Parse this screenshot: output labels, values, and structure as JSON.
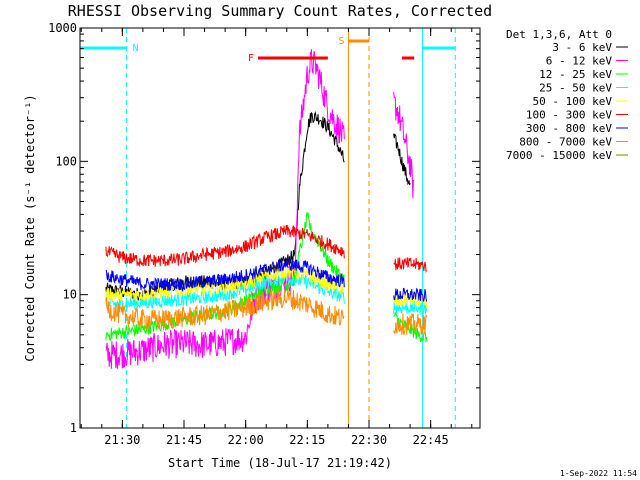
{
  "chart_data": {
    "type": "line",
    "title": "RHESSI Observing Summary Count Rates, Corrected",
    "xlabel": "Start Time (18-Jul-17 21:19:42)",
    "ylabel": "Corrected Count Rate (s⁻¹ detector⁻¹)",
    "yscale": "log",
    "ylim": [
      1,
      1000
    ],
    "xlim": [
      "21:19:42",
      "22:57:00"
    ],
    "x_ticks": [
      "21:30",
      "21:45",
      "22:00",
      "22:15",
      "22:30",
      "22:45"
    ],
    "y_ticks": [
      "1",
      "10",
      "100",
      "1000"
    ],
    "legend_title": "Det 1,3,6, Att 0",
    "legend_position": "right",
    "series": [
      {
        "name": "3 - 6 keV",
        "color": "#000000",
        "x": [
          "21:26",
          "21:30",
          "21:35",
          "21:40",
          "21:45",
          "21:50",
          "21:55",
          "22:00",
          "22:05",
          "22:10",
          "22:12",
          "22:13",
          "22:15",
          "22:16",
          "22:18",
          "22:20",
          "22:22",
          "22:23",
          "22:24"
        ],
        "y": [
          11,
          10.5,
          10,
          11.5,
          12.5,
          12.5,
          12,
          12.5,
          14.5,
          18,
          20,
          60,
          180,
          220,
          210,
          180,
          140,
          120,
          100
        ],
        "x2": [
          "22:36",
          "22:37",
          "22:38",
          "22:39",
          "22:40"
        ],
        "y2": [
          150,
          130,
          100,
          80,
          65
        ]
      },
      {
        "name": "6 - 12 keV",
        "color": "#ff00ff",
        "x": [
          "21:26",
          "21:30",
          "21:35",
          "21:40",
          "21:45",
          "21:50",
          "21:55",
          "22:00",
          "22:02",
          "22:05",
          "22:10",
          "22:12",
          "22:13",
          "22:15",
          "22:16",
          "22:17",
          "22:18",
          "22:20",
          "22:22",
          "22:23",
          "22:24"
        ],
        "y": [
          3.5,
          3.6,
          3.8,
          4.2,
          4.3,
          4.2,
          4.4,
          4.8,
          9,
          11,
          13,
          14,
          150,
          450,
          560,
          520,
          420,
          250,
          190,
          170,
          140
        ],
        "x2": [
          "22:36",
          "22:37",
          "22:38",
          "22:39",
          "22:40",
          "22:41"
        ],
        "y2": [
          270,
          240,
          180,
          130,
          95,
          55
        ]
      },
      {
        "name": "12 - 25 keV",
        "color": "#00ff00",
        "x": [
          "21:26",
          "21:30",
          "21:35",
          "21:40",
          "21:45",
          "21:50",
          "21:55",
          "22:00",
          "22:05",
          "22:10",
          "22:12",
          "22:13",
          "22:15",
          "22:16",
          "22:18",
          "22:20",
          "22:22",
          "22:23",
          "22:24"
        ],
        "y": [
          5,
          5.2,
          5.5,
          6,
          6.5,
          7,
          7.5,
          9,
          11,
          12,
          13,
          20,
          38,
          30,
          24,
          18,
          15,
          14,
          13
        ],
        "x2": [
          "22:36",
          "22:38",
          "22:40",
          "22:42",
          "22:44"
        ],
        "y2": [
          7,
          6,
          5.5,
          5,
          4.8
        ]
      },
      {
        "name": "25 - 50 keV",
        "color": "#00ffff",
        "x": [
          "21:26",
          "21:30",
          "21:35",
          "21:40",
          "21:45",
          "21:50",
          "21:55",
          "22:00",
          "22:05",
          "22:10",
          "22:15",
          "22:20",
          "22:24"
        ],
        "y": [
          8.5,
          8.5,
          8.7,
          9,
          9.2,
          9.5,
          10,
          11,
          12.5,
          13.5,
          12.5,
          10.5,
          9.5
        ],
        "x2": [
          "22:36",
          "22:40",
          "22:44"
        ],
        "y2": [
          8,
          8,
          7.8
        ]
      },
      {
        "name": "50 - 100 keV",
        "color": "#ffff00",
        "x": [
          "21:26",
          "21:30",
          "21:35",
          "21:40",
          "21:45",
          "21:50",
          "21:55",
          "22:00",
          "22:05",
          "22:10",
          "22:15",
          "22:20",
          "22:24"
        ],
        "y": [
          10,
          10,
          10,
          10.5,
          11,
          11,
          11.5,
          12,
          14,
          15,
          14,
          12,
          11
        ],
        "x2": [
          "22:36",
          "22:40",
          "22:44"
        ],
        "y2": [
          9,
          9,
          8.8
        ]
      },
      {
        "name": "100 - 300 keV",
        "color": "#ff0000",
        "x": [
          "21:26",
          "21:30",
          "21:35",
          "21:40",
          "21:45",
          "21:50",
          "21:55",
          "22:00",
          "22:05",
          "22:10",
          "22:15",
          "22:20",
          "22:24"
        ],
        "y": [
          21,
          19,
          18,
          18,
          18.5,
          20,
          21,
          23,
          27,
          30,
          28,
          24,
          21
        ],
        "x2": [
          "22:36",
          "22:40",
          "22:44"
        ],
        "y2": [
          17,
          17,
          16.5
        ]
      },
      {
        "name": "300 - 800 keV",
        "color": "#0000ff",
        "x": [
          "21:26",
          "21:30",
          "21:35",
          "21:40",
          "21:45",
          "21:50",
          "21:55",
          "22:00",
          "22:05",
          "22:10",
          "22:15",
          "22:20",
          "22:24"
        ],
        "y": [
          14,
          13,
          12,
          12,
          12,
          12.5,
          13,
          14,
          15.5,
          17,
          16,
          13.5,
          12.5
        ],
        "x2": [
          "22:36",
          "22:40",
          "22:44"
        ],
        "y2": [
          10,
          10,
          9.8
        ]
      },
      {
        "name": "800 - 7000 keV",
        "color": "#ff8c00",
        "x": [
          "21:26",
          "21:30",
          "21:35",
          "21:40",
          "21:45",
          "21:50",
          "21:55",
          "22:00",
          "22:05",
          "22:10",
          "22:15",
          "22:20",
          "22:24"
        ],
        "y": [
          8,
          7,
          6.5,
          6.5,
          6.8,
          7,
          7.5,
          8,
          9,
          9.5,
          8.5,
          7.2,
          6.5
        ],
        "x2": [
          "22:36",
          "22:40",
          "22:44"
        ],
        "y2": [
          6,
          6,
          6
        ]
      },
      {
        "name": "7000 - 15000 keV",
        "color": "#808000",
        "x": [],
        "y": []
      }
    ],
    "flags": [
      {
        "label": "N",
        "color": "#00ffff",
        "segments": [
          [
            "21:19:42",
            "21:31"
          ],
          [
            "22:43",
            "22:51"
          ]
        ]
      },
      {
        "label": "F",
        "color": "#ff0000",
        "segments": [
          [
            "22:03",
            "22:20"
          ],
          [
            "22:38",
            "22:41"
          ]
        ]
      },
      {
        "label": "S",
        "color": "#ff8c00",
        "segments": [
          [
            "22:25",
            "22:30"
          ]
        ]
      }
    ],
    "vlines": [
      {
        "time": "21:19:42",
        "color": "#00ffff",
        "style": "solid"
      },
      {
        "time": "21:31",
        "color": "#00ffff",
        "style": "dashed"
      },
      {
        "time": "22:25",
        "color": "#ff8c00",
        "style": "solid"
      },
      {
        "time": "22:30",
        "color": "#ff8c00",
        "style": "dashed"
      },
      {
        "time": "22:43",
        "color": "#00ffff",
        "style": "solid"
      },
      {
        "time": "22:51",
        "color": "#00ffff",
        "style": "dashed"
      }
    ],
    "gap": [
      "22:25",
      "22:35"
    ],
    "timestamp": "1-Sep-2022 11:54"
  }
}
